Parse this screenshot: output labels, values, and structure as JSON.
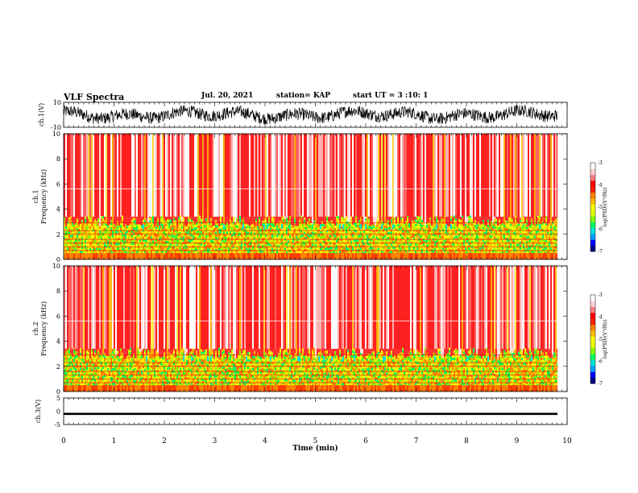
{
  "header": {
    "title": "VLF Spectra",
    "date": "Jul. 20, 2021",
    "station": "station= KAP",
    "start": "start UT = 3 :10: 1"
  },
  "colors": {
    "spectrogram_scale": [
      "#000080",
      "#0000ff",
      "#00a0ff",
      "#00e0e0",
      "#00ff60",
      "#80ff00",
      "#e0ff00",
      "#ffff00",
      "#ffc000",
      "#ff8000",
      "#ff2000",
      "#ff0000",
      "#ff8080",
      "#ffd0d0",
      "#ffffff"
    ],
    "trace": "#000000"
  },
  "chart_data": [
    {
      "type": "line",
      "ylabel": "ch.1(V)",
      "ylim": [
        -10,
        10
      ],
      "yticks": [
        {
          "v": 10,
          "label": "10"
        },
        {
          "v": -10,
          "label": "-10"
        }
      ],
      "xlim": [
        0,
        10
      ],
      "description_level": "dense noisy waveform spanning roughly -7 to +7 V"
    },
    {
      "type": "heatmap",
      "ylabel": "ch.1\nFrequency (kHz)",
      "ylim": [
        0,
        10
      ],
      "yticks": [
        "0",
        "2",
        "4",
        "6",
        "8",
        "10"
      ],
      "xlim": [
        0,
        10
      ],
      "colorbar": {
        "label": "log(PSD)(V²/Hz)",
        "range": [
          -7,
          -3
        ],
        "ticks": [
          "-3",
          "-4",
          "-5",
          "-6",
          "-7"
        ]
      }
    },
    {
      "type": "heatmap",
      "ylabel": "ch.2\nFrequency (kHz)",
      "ylim": [
        0,
        10
      ],
      "yticks": [
        "0",
        "2",
        "4",
        "6",
        "8",
        "10"
      ],
      "xlim": [
        0,
        10
      ],
      "colorbar": {
        "label": "log(PSD)(V²/Hz)",
        "range": [
          -7,
          -3
        ],
        "ticks": [
          "-3",
          "-4",
          "-5",
          "-6",
          "-7"
        ]
      }
    },
    {
      "type": "line",
      "ylabel": "ch.3(V)",
      "ylim": [
        -5,
        5
      ],
      "yticks": [
        {
          "v": 5,
          "label": "5"
        },
        {
          "v": 0,
          "label": "0"
        },
        {
          "v": -5,
          "label": "-5"
        }
      ],
      "xlim": [
        0,
        10
      ],
      "xlabel": "Time (min)",
      "xticks": [
        "0",
        "1",
        "2",
        "3",
        "4",
        "5",
        "6",
        "7",
        "8",
        "9",
        "10"
      ],
      "description_level": "nearly constant thick trace near -1 V"
    }
  ]
}
